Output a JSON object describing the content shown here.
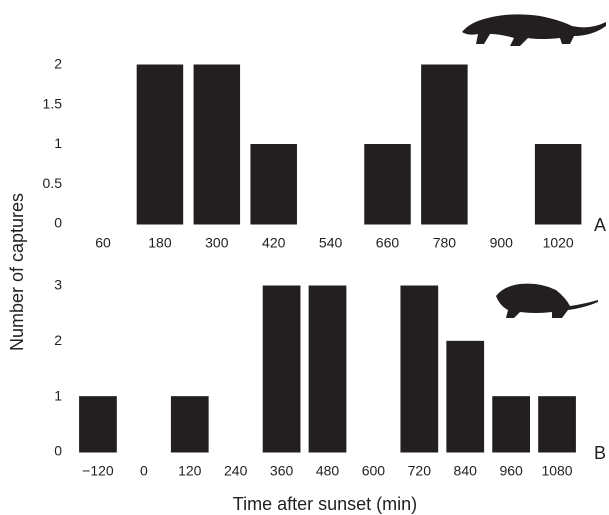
{
  "chart_data": [
    {
      "type": "bar",
      "ylabel": "Number of captures",
      "panel_label": "A",
      "categories": [
        "60",
        "180",
        "300",
        "420",
        "540",
        "660",
        "780",
        "900",
        "1020"
      ],
      "values": [
        0,
        2,
        2,
        1,
        0,
        1,
        2,
        0,
        1
      ],
      "color": "#231f20",
      "ylim": [
        0,
        2
      ],
      "yticks": [
        0,
        0.5,
        1,
        1.5,
        2
      ]
    },
    {
      "type": "bar",
      "xlabel": "Time after sunset (min)",
      "panel_label": "B",
      "categories": [
        "−120",
        "0",
        "120",
        "240",
        "360",
        "480",
        "600",
        "720",
        "840",
        "960",
        "1080"
      ],
      "values": [
        1,
        0,
        1,
        0,
        3,
        3,
        0,
        3,
        2,
        1,
        1
      ],
      "color": "#231f20",
      "ylim": [
        0,
        3
      ],
      "yticks": [
        0,
        1,
        2,
        3
      ]
    }
  ]
}
